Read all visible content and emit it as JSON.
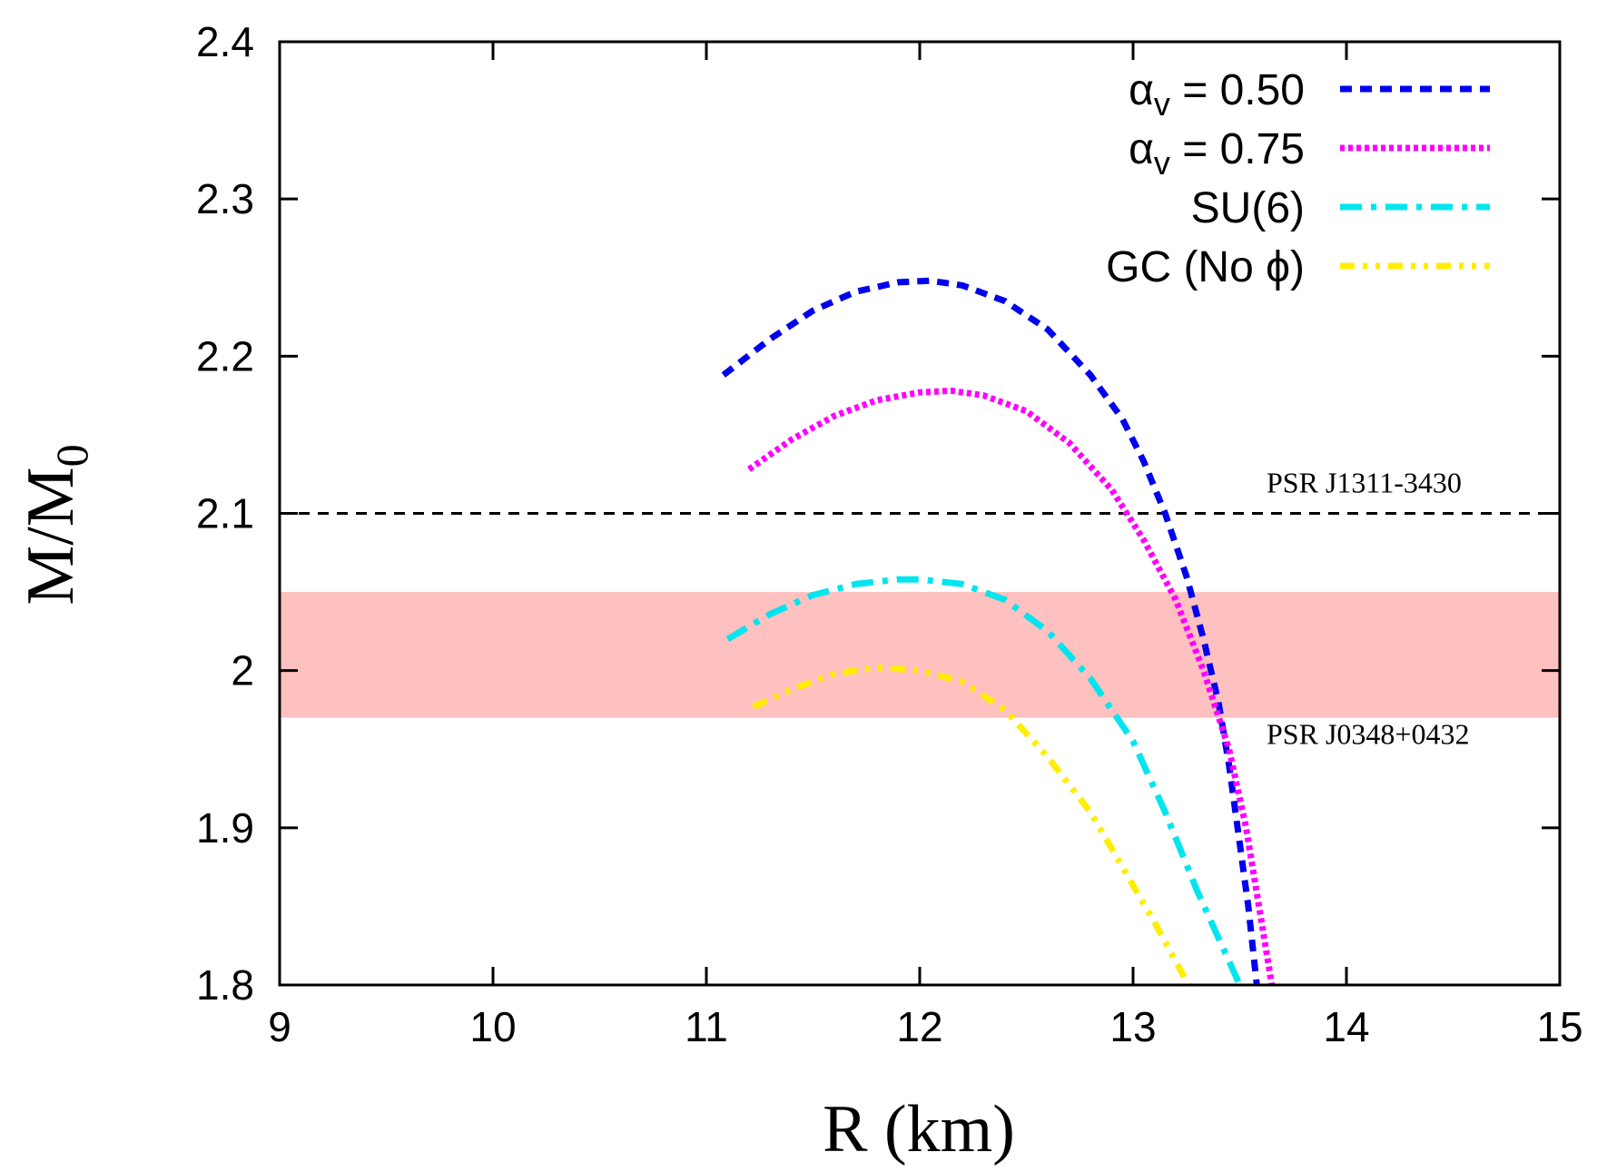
{
  "chart_data": {
    "type": "line",
    "xlabel": "R  (km)",
    "ylabel": "M/M",
    "ylabel_sub": "0",
    "xlim": [
      9,
      15
    ],
    "ylim": [
      1.8,
      2.4
    ],
    "xticks": [
      9,
      10,
      11,
      12,
      13,
      14,
      15
    ],
    "xtick_labels": [
      "9",
      "10",
      "11",
      "12",
      "13",
      "14",
      "15"
    ],
    "yticks": [
      1.8,
      1.9,
      2.0,
      2.1,
      2.2,
      2.3,
      2.4
    ],
    "ytick_labels": [
      "1.8",
      "1.9",
      "2",
      "2.1",
      "2.2",
      "2.3",
      "2.4"
    ],
    "grid": false,
    "legend_position": "top-right",
    "series": [
      {
        "name": "αv = 0.50",
        "label_main": "α",
        "label_sub": "v",
        "label_rest": " = 0.50",
        "color": "#0000ee",
        "style": "dashed",
        "points": [
          [
            11.08,
            2.188
          ],
          [
            11.3,
            2.211
          ],
          [
            11.5,
            2.229
          ],
          [
            11.7,
            2.241
          ],
          [
            11.9,
            2.247
          ],
          [
            12.05,
            2.248
          ],
          [
            12.2,
            2.245
          ],
          [
            12.4,
            2.235
          ],
          [
            12.6,
            2.217
          ],
          [
            12.8,
            2.188
          ],
          [
            12.95,
            2.16
          ],
          [
            13.05,
            2.133
          ],
          [
            13.15,
            2.1
          ],
          [
            13.25,
            2.06
          ],
          [
            13.33,
            2.02
          ],
          [
            13.4,
            1.98
          ],
          [
            13.45,
            1.94
          ],
          [
            13.5,
            1.89
          ],
          [
            13.54,
            1.85
          ],
          [
            13.58,
            1.8
          ]
        ]
      },
      {
        "name": "αv = 0.75",
        "label_main": "α",
        "label_sub": "v",
        "label_rest": " = 0.75",
        "color": "#ff00ff",
        "style": "dotted",
        "points": [
          [
            11.2,
            2.128
          ],
          [
            11.4,
            2.147
          ],
          [
            11.6,
            2.162
          ],
          [
            11.8,
            2.172
          ],
          [
            12.0,
            2.177
          ],
          [
            12.15,
            2.178
          ],
          [
            12.3,
            2.175
          ],
          [
            12.5,
            2.165
          ],
          [
            12.7,
            2.145
          ],
          [
            12.9,
            2.115
          ],
          [
            13.05,
            2.083
          ],
          [
            13.2,
            2.045
          ],
          [
            13.33,
            2.0
          ],
          [
            13.45,
            1.95
          ],
          [
            13.53,
            1.9
          ],
          [
            13.59,
            1.85
          ],
          [
            13.65,
            1.8
          ]
        ]
      },
      {
        "name": "SU(6)",
        "label_main": "SU(6)",
        "label_sub": "",
        "label_rest": "",
        "color": "#00e5ee",
        "style": "dashdot",
        "points": [
          [
            11.1,
            2.02
          ],
          [
            11.3,
            2.036
          ],
          [
            11.5,
            2.048
          ],
          [
            11.7,
            2.055
          ],
          [
            11.9,
            2.058
          ],
          [
            12.0,
            2.058
          ],
          [
            12.2,
            2.055
          ],
          [
            12.4,
            2.045
          ],
          [
            12.6,
            2.025
          ],
          [
            12.8,
            1.995
          ],
          [
            13.0,
            1.955
          ],
          [
            13.15,
            1.91
          ],
          [
            13.3,
            1.86
          ],
          [
            13.4,
            1.83
          ],
          [
            13.5,
            1.8
          ]
        ]
      },
      {
        "name": "GC (No ϕ)",
        "label_main": "GC (No ϕ)",
        "label_sub": "",
        "label_rest": "",
        "color": "#ffee00",
        "style": "dashdotdot",
        "points": [
          [
            11.22,
            1.977
          ],
          [
            11.4,
            1.988
          ],
          [
            11.6,
            1.998
          ],
          [
            11.8,
            2.002
          ],
          [
            12.0,
            2.0
          ],
          [
            12.2,
            1.993
          ],
          [
            12.4,
            1.975
          ],
          [
            12.6,
            1.945
          ],
          [
            12.8,
            1.91
          ],
          [
            12.95,
            1.875
          ],
          [
            13.1,
            1.84
          ],
          [
            13.22,
            1.81
          ],
          [
            13.26,
            1.8
          ]
        ]
      }
    ],
    "bands": [
      {
        "label": "PSR J0348+0432",
        "y_min": 1.97,
        "y_max": 2.05,
        "color": "#ffc0c0"
      }
    ],
    "reference_lines": [
      {
        "label": "PSR J1311-3430",
        "y": 2.1,
        "color": "#000000",
        "style": "dashed"
      }
    ]
  }
}
